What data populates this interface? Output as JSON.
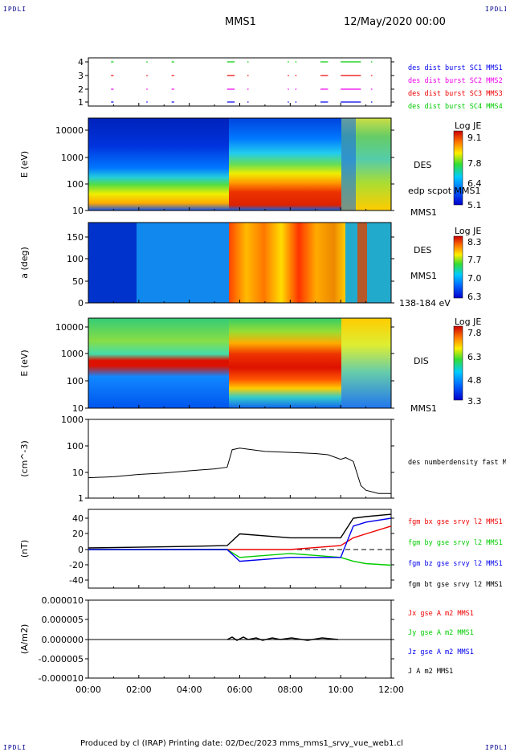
{
  "corner_label": "IPDLI",
  "header": {
    "mission": "MMS1",
    "datetime": "12/May/2020 00:00"
  },
  "footer": {
    "text": "Produced by cl (IRAP)   Printing date: 02/Dec/2023   mms_mms1_srvy_vue_web1.cl"
  },
  "colors": {
    "red": "#ee0000",
    "green": "#00cc00",
    "blue": "#0000ee",
    "magenta": "#ee00ee",
    "black": "#000000"
  },
  "chart_data": [
    {
      "id": "burst",
      "type": "scatter",
      "x_ticks_hours": [
        0,
        2,
        4,
        6,
        8,
        10,
        12
      ],
      "yticks": [
        "1",
        "2",
        "3",
        "4"
      ],
      "legend": [
        {
          "label": "des dist burst SC1 MMS1",
          "color": "#0000ee"
        },
        {
          "label": "des dist burst SC2 MMS2",
          "color": "#ee00ee"
        },
        {
          "label": "des dist burst SC3 MMS3",
          "color": "#ee0000"
        },
        {
          "label": "des dist burst SC4 MMS4",
          "color": "#00cc00"
        }
      ],
      "segments_hours": [
        [
          0.9,
          1.0
        ],
        [
          2.3,
          2.35
        ],
        [
          3.3,
          3.4
        ],
        [
          5.5,
          5.8
        ],
        [
          6.3,
          6.35
        ],
        [
          7.9,
          7.95
        ],
        [
          8.2,
          8.25
        ],
        [
          9.2,
          9.5
        ],
        [
          10.0,
          10.8
        ],
        [
          11.2,
          11.25
        ]
      ]
    },
    {
      "id": "des-energy",
      "type": "heatmap",
      "ylabel": "E (eV)",
      "yticks": [
        "10",
        "100",
        "1000",
        "10000"
      ],
      "ylim": [
        10,
        30000
      ],
      "side_labels": [
        "DES",
        "edp scpot MMS1",
        "MMS1"
      ],
      "colorbar": {
        "title": "Log JE",
        "ticks": [
          "9.1",
          "7.8",
          "6.4",
          "5.1"
        ]
      }
    },
    {
      "id": "des-pitch",
      "type": "heatmap",
      "ylabel": "a (deg)",
      "yticks": [
        "0",
        "50",
        "100",
        "150"
      ],
      "ylim": [
        0,
        180
      ],
      "side_labels": [
        "DES",
        "MMS1",
        "138-184 eV"
      ],
      "colorbar": {
        "title": "Log JE",
        "ticks": [
          "8.3",
          "7.7",
          "7.0",
          "6.3"
        ]
      }
    },
    {
      "id": "dis-energy",
      "type": "heatmap",
      "ylabel": "E (eV)",
      "yticks": [
        "10",
        "100",
        "1000",
        "10000"
      ],
      "ylim": [
        10,
        30000
      ],
      "side_labels": [
        "DIS",
        "MMS1"
      ],
      "colorbar": {
        "title": "Log JE",
        "ticks": [
          "7.8",
          "6.3",
          "4.8",
          "3.3"
        ]
      }
    },
    {
      "id": "density",
      "type": "line",
      "ylabel": "(cm^-3)",
      "yticks": [
        "1",
        "10",
        "100",
        "1000"
      ],
      "ylim": [
        1,
        1000
      ],
      "legend": [
        {
          "label": "des numberdensity fast M",
          "color": "#000000"
        }
      ],
      "x_hours": [
        0,
        1,
        2,
        3,
        4,
        5,
        5.5,
        5.7,
        6,
        7,
        8,
        9,
        9.5,
        10,
        10.2,
        10.5,
        10.8,
        11,
        11.5,
        12
      ],
      "values": [
        6,
        6.5,
        8,
        9,
        11,
        13,
        15,
        70,
        80,
        60,
        55,
        50,
        45,
        30,
        35,
        25,
        3,
        2,
        1.5,
        1.5
      ]
    },
    {
      "id": "fgm",
      "type": "line",
      "ylabel": "(nT)",
      "yticks": [
        "-40",
        "-20",
        "0",
        "20",
        "40"
      ],
      "ylim": [
        -50,
        50
      ],
      "legend": [
        {
          "label": "fgm bx gse srvy l2 MMS1",
          "color": "#ee0000"
        },
        {
          "label": "fgm by gse srvy l2 MMS1",
          "color": "#00cc00"
        },
        {
          "label": "fgm bz gse srvy l2 MMS1",
          "color": "#0000ee"
        },
        {
          "label": "fgm bt gse srvy l2 MMS1",
          "color": "#000000"
        }
      ],
      "x_hours": [
        0,
        2,
        4,
        5.5,
        6,
        8,
        10,
        10.5,
        11,
        12
      ],
      "series": [
        {
          "name": "bx",
          "values": [
            0,
            0,
            0,
            0,
            0,
            0,
            5,
            15,
            20,
            30
          ]
        },
        {
          "name": "by",
          "values": [
            0,
            0,
            0,
            0,
            -10,
            -5,
            -10,
            -15,
            -18,
            -20
          ]
        },
        {
          "name": "bz",
          "values": [
            0,
            0,
            0,
            0,
            -15,
            -10,
            -10,
            30,
            35,
            40
          ]
        },
        {
          "name": "bt",
          "values": [
            2,
            3,
            4,
            5,
            20,
            15,
            15,
            40,
            42,
            45
          ]
        }
      ]
    },
    {
      "id": "current",
      "type": "line",
      "ylabel": "(A/m2)",
      "yticks": [
        "-0.000010",
        "-0.000005",
        "0.000000",
        "0.000005",
        "0.000010"
      ],
      "ylim": [
        -1e-05,
        1e-05
      ],
      "legend": [
        {
          "label": "Jx gse A m2 MMS1",
          "color": "#ee0000"
        },
        {
          "label": "Jy gse A m2 MMS1",
          "color": "#00cc00"
        },
        {
          "label": "Jz gse A m2 MMS1",
          "color": "#0000ee"
        },
        {
          "label": "J A m2 MMS1",
          "color": "#000000"
        }
      ],
      "xticks": [
        "00:00",
        "02:00",
        "04:00",
        "06:00",
        "08:00",
        "10:00",
        "12:00"
      ]
    }
  ]
}
